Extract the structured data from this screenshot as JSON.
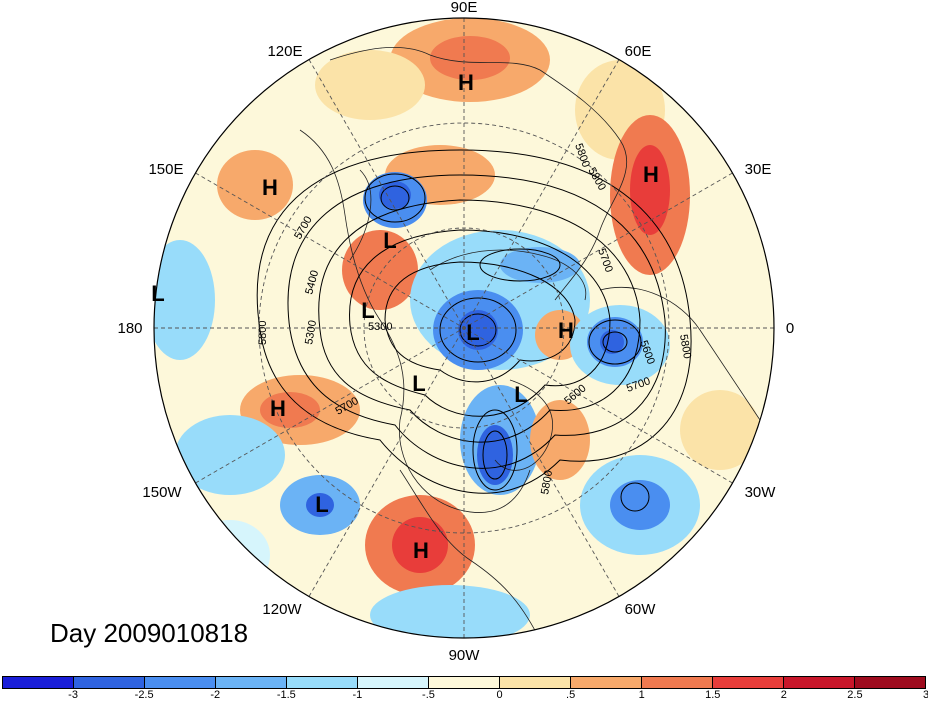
{
  "title": "Day 2009010818",
  "longitude_labels": [
    "90E",
    "60E",
    "30E",
    "0",
    "30W",
    "60W",
    "90W",
    "120W",
    "150W",
    "180",
    "150E",
    "120E"
  ],
  "pressure_centers": [
    {
      "type": "H",
      "label": "H"
    },
    {
      "type": "H",
      "label": "H"
    },
    {
      "type": "H",
      "label": "H"
    },
    {
      "type": "H",
      "label": "H"
    },
    {
      "type": "H",
      "label": "H"
    },
    {
      "type": "H",
      "label": "H"
    },
    {
      "type": "L",
      "label": "L"
    },
    {
      "type": "L",
      "label": "L"
    },
    {
      "type": "L",
      "label": "L"
    },
    {
      "type": "L",
      "label": "L"
    },
    {
      "type": "L",
      "label": "L"
    },
    {
      "type": "L",
      "label": "L"
    },
    {
      "type": "L",
      "label": "L"
    }
  ],
  "contour_labels": [
    "5800",
    "5700",
    "5400",
    "5300",
    "5300",
    "5800",
    "5700",
    "5800",
    "5700",
    "5600",
    "5600",
    "5800",
    "5800",
    "5700"
  ],
  "colorbar": {
    "colors": [
      "#1a1ed8",
      "#2f63e0",
      "#4a8ef0",
      "#6bb3f5",
      "#98dcfa",
      "#d6f5fc",
      "#fdf8da",
      "#fbe3a8",
      "#f7a96b",
      "#f07a50",
      "#e83d3a",
      "#c8162a",
      "#9e0b1e"
    ],
    "tick_labels": [
      "-3",
      "-2.5",
      "-2",
      "-1.5",
      "-1",
      "-.5",
      "0",
      ".5",
      "1",
      "1.5",
      "2",
      "2.5",
      "3"
    ]
  }
}
